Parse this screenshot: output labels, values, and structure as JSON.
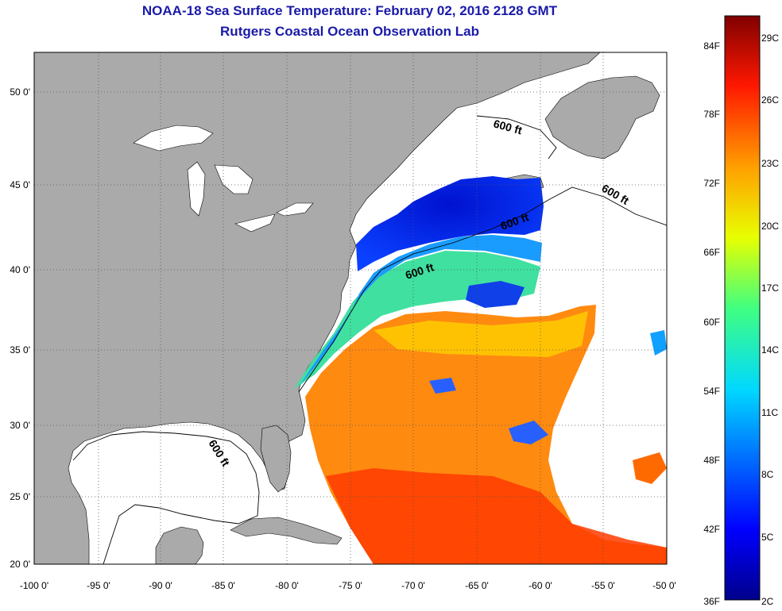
{
  "title": "NOAA-18 Sea Surface Temperature:  February 02, 2016 2128 GMT",
  "subtitle": "Rutgers Coastal Ocean Observation Lab",
  "lat_labels": [
    "50 0'",
    "45 0'",
    "40 0'",
    "35 0'",
    "30 0'",
    "25 0'",
    "20 0'"
  ],
  "lon_labels": [
    "-100 0'",
    "-95 0'",
    "-90 0'",
    "-85 0'",
    "-80 0'",
    "-75 0'",
    "-70 0'",
    "-65 0'",
    "-60 0'",
    "-55 0'",
    "-50 0'"
  ],
  "isobath_label": "600 ft",
  "colorbar": {
    "fahrenheit": [
      "84F",
      "78F",
      "72F",
      "66F",
      "60F",
      "54F",
      "48F",
      "42F",
      "36F"
    ],
    "celsius": [
      "29C",
      "26C",
      "23C",
      "20C",
      "17C",
      "14C",
      "11C",
      "8C",
      "5C",
      "2C"
    ]
  },
  "colors": {
    "land": "#aaaaaa",
    "no_data": "#ffffff",
    "title": "#1a1aa8",
    "scale_min": "#00008b",
    "scale_max": "#800000"
  }
}
